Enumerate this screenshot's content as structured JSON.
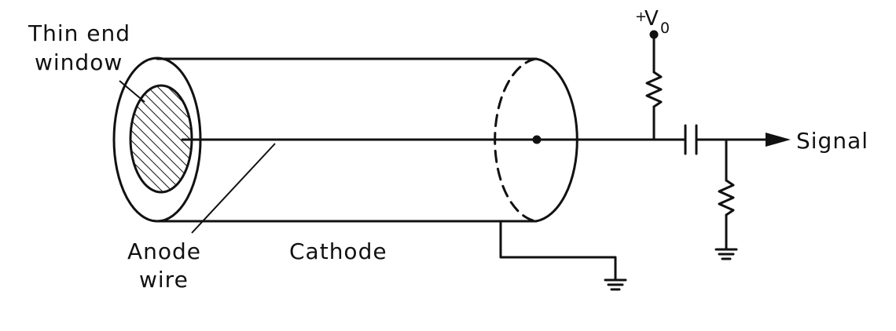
{
  "labels": {
    "window_line1": "Thin end",
    "window_line2": "window",
    "voltage_sign": "+",
    "voltage_symbol": "V",
    "voltage_subscript": "0",
    "signal": "Signal",
    "anode_line1": "Anode",
    "anode_line2": "wire",
    "cathode": "Cathode"
  },
  "colors": {
    "ink": "#111111",
    "background": "#ffffff"
  },
  "icons": [
    "ground-symbol-icon",
    "resistor-icon",
    "capacitor-icon",
    "arrow-icon"
  ]
}
